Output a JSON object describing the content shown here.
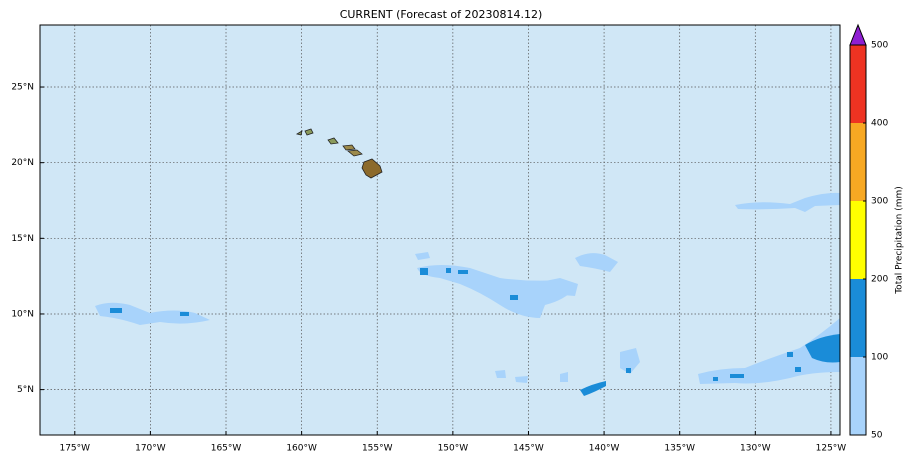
{
  "title": "CURRENT (Forecast of 20230814.12)",
  "map": {
    "xlim": [
      -177.3,
      -124.4
    ],
    "ylim": [
      2,
      29.1
    ],
    "xticks": [
      {
        "value": -175,
        "label": "175°W"
      },
      {
        "value": -170,
        "label": "170°W"
      },
      {
        "value": -165,
        "label": "165°W"
      },
      {
        "value": -160,
        "label": "160°W"
      },
      {
        "value": -155,
        "label": "155°W"
      },
      {
        "value": -150,
        "label": "150°W"
      },
      {
        "value": -145,
        "label": "145°W"
      },
      {
        "value": -140,
        "label": "140°W"
      },
      {
        "value": -135,
        "label": "135°W"
      },
      {
        "value": -130,
        "label": "130°W"
      },
      {
        "value": -125,
        "label": "125°W"
      }
    ],
    "yticks": [
      {
        "value": 5,
        "label": "5°N"
      },
      {
        "value": 10,
        "label": "10°N"
      },
      {
        "value": 15,
        "label": "15°N"
      },
      {
        "value": 20,
        "label": "20°N"
      },
      {
        "value": 25,
        "label": "25°N"
      }
    ],
    "grid": true,
    "background": "#d0e7f6"
  },
  "colorbar": {
    "label": "Total Precipitation (mm)",
    "ticks": [
      50,
      100,
      200,
      300,
      400,
      500
    ],
    "colors": [
      "#a8d3fb",
      "#1a8cd8",
      "#ffff00",
      "#f7a823",
      "#ee3322"
    ],
    "extend_color": "#8f1fd2"
  }
}
